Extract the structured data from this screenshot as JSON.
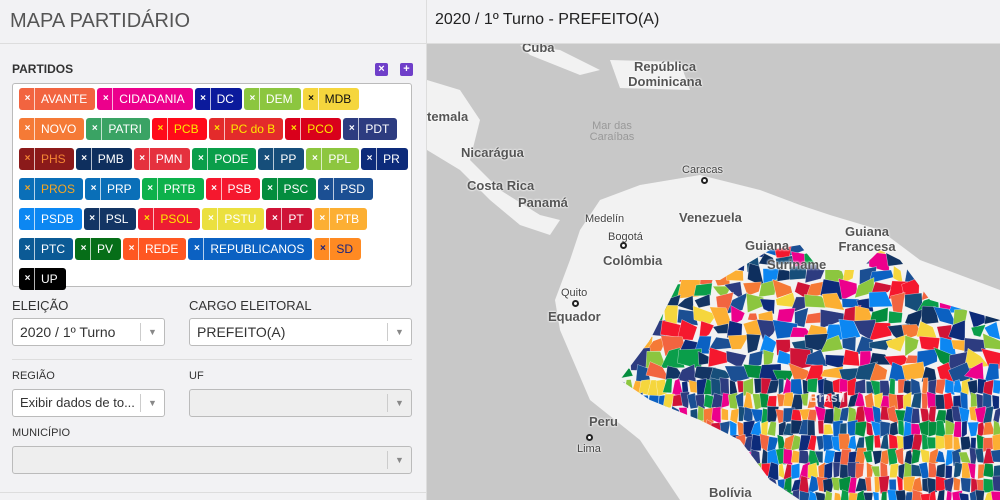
{
  "sidebar": {
    "title": "MAPA PARTIDÁRIO",
    "parties_label": "PARTIDOS",
    "clear_icon": "x-square-icon",
    "add_icon": "plus-square-icon",
    "parties": [
      {
        "name": "AVANTE",
        "bg": "#f26440",
        "fg": "#ffffff",
        "x": "#ffffff"
      },
      {
        "name": "CIDADANIA",
        "bg": "#ec008c",
        "fg": "#ffffff",
        "x": "#ffffff"
      },
      {
        "name": "DC",
        "bg": "#0b1a9c",
        "fg": "#ffffff",
        "x": "#ffffff"
      },
      {
        "name": "DEM",
        "bg": "#8cc63f",
        "fg": "#ffffff",
        "x": "#ffffff"
      },
      {
        "name": "MDB",
        "bg": "#f5d63d",
        "fg": "#111111",
        "x": "#111111"
      },
      {
        "name": "NOVO",
        "bg": "#f57a36",
        "fg": "#ffffff",
        "x": "#ffffff"
      },
      {
        "name": "PATRI",
        "bg": "#3aa364",
        "fg": "#ffffff",
        "x": "#ffffff"
      },
      {
        "name": "PCB",
        "bg": "#ff0a1a",
        "fg": "#ffe600",
        "x": "#ffe600"
      },
      {
        "name": "PC do B",
        "bg": "#e32b2b",
        "fg": "#ffe600",
        "x": "#ffe600"
      },
      {
        "name": "PCO",
        "bg": "#d9001b",
        "fg": "#ffe600",
        "x": "#ffe600"
      },
      {
        "name": "PDT",
        "bg": "#2d3c80",
        "fg": "#ffffff",
        "x": "#ffffff"
      },
      {
        "name": "PHS",
        "bg": "#8b1a1a",
        "fg": "#f58634",
        "x": "#f58634"
      },
      {
        "name": "PMB",
        "bg": "#0e2f5e",
        "fg": "#ffffff",
        "x": "#ffffff"
      },
      {
        "name": "PMN",
        "bg": "#e5313e",
        "fg": "#ffffff",
        "x": "#ffffff"
      },
      {
        "name": "PODE",
        "bg": "#0a9e4a",
        "fg": "#ffffff",
        "x": "#ffffff"
      },
      {
        "name": "PP",
        "bg": "#164e7a",
        "fg": "#ffffff",
        "x": "#ffffff"
      },
      {
        "name": "PPL",
        "bg": "#8dc63f",
        "fg": "#ffffff",
        "x": "#ffffff"
      },
      {
        "name": "PR",
        "bg": "#0d2b7a",
        "fg": "#ffffff",
        "x": "#ffffff"
      },
      {
        "name": "PROS",
        "bg": "#0a6fb8",
        "fg": "#f5a623",
        "x": "#f5a623"
      },
      {
        "name": "PRP",
        "bg": "#0a6fb8",
        "fg": "#ffffff",
        "x": "#ffffff"
      },
      {
        "name": "PRTB",
        "bg": "#0db14b",
        "fg": "#ffffff",
        "x": "#ffffff"
      },
      {
        "name": "PSB",
        "bg": "#f5182e",
        "fg": "#ffffff",
        "x": "#ffffff"
      },
      {
        "name": "PSC",
        "bg": "#048d3e",
        "fg": "#ffffff",
        "x": "#ffffff"
      },
      {
        "name": "PSD",
        "bg": "#1b4f93",
        "fg": "#ffffff",
        "x": "#ffffff"
      },
      {
        "name": "PSDB",
        "bg": "#0c87f2",
        "fg": "#ffffff",
        "x": "#ffffff"
      },
      {
        "name": "PSL",
        "bg": "#133564",
        "fg": "#ffffff",
        "x": "#ffffff"
      },
      {
        "name": "PSOL",
        "bg": "#ed1c33",
        "fg": "#ffe600",
        "x": "#ffe600"
      },
      {
        "name": "PSTU",
        "bg": "#ebe03f",
        "fg": "#ffffff",
        "x": "#ffffff"
      },
      {
        "name": "PT",
        "bg": "#cf1437",
        "fg": "#ffffff",
        "x": "#ffffff"
      },
      {
        "name": "PTB",
        "bg": "#fcaf33",
        "fg": "#ffffff",
        "x": "#ffffff"
      },
      {
        "name": "PTC",
        "bg": "#0b5a95",
        "fg": "#ffffff",
        "x": "#ffffff"
      },
      {
        "name": "PV",
        "bg": "#066e18",
        "fg": "#ffffff",
        "x": "#ffffff"
      },
      {
        "name": "REDE",
        "bg": "#ff5722",
        "fg": "#ffffff",
        "x": "#ffffff"
      },
      {
        "name": "REPUBLICANOS",
        "bg": "#0b61c2",
        "fg": "#ffffff",
        "x": "#ffffff"
      },
      {
        "name": "SD",
        "bg": "#ff8a22",
        "fg": "#1a237e",
        "x": "#1a237e"
      },
      {
        "name": "UP",
        "bg": "#000000",
        "fg": "#ffffff",
        "x": "#ffffff"
      }
    ],
    "remove_symbol": "×",
    "filters": {
      "election_label": "ELEIÇÃO",
      "election_value": "2020 / 1º Turno",
      "office_label": "CARGO ELEITORAL",
      "office_value": "PREFEITO(A)",
      "region_label": "REGIÃO",
      "region_value": "Exibir dados de to...",
      "uf_label": "UF",
      "uf_value": "",
      "city_label": "MUNICÍPIO",
      "city_value": ""
    }
  },
  "map": {
    "title": "2020 / 1º Turno - PREFEITO(A)",
    "labels": {
      "cuba": "Cuba",
      "dominicana": "República Dominicana",
      "guatemala": "temala",
      "sea": "Mar das Caraíbas",
      "nicaragua": "Nicarágua",
      "costarica": "Costa Rica",
      "panama": "Panamá",
      "caracas": "Caracas",
      "medellin": "Medelín",
      "venezuela": "Venezuela",
      "bogota": "Bogotá",
      "colombia": "Colômbia",
      "guiana": "Guiana",
      "guianafr": "Guiana Francesa",
      "suriname": "Suriname",
      "quito": "Quito",
      "equador": "Equador",
      "brasil": "Brasil",
      "peru": "Peru",
      "lima": "Lima",
      "bolivia": "Bolívia"
    },
    "colors": {
      "water": "#c8c8c8",
      "land": "#f2f2f2"
    }
  }
}
